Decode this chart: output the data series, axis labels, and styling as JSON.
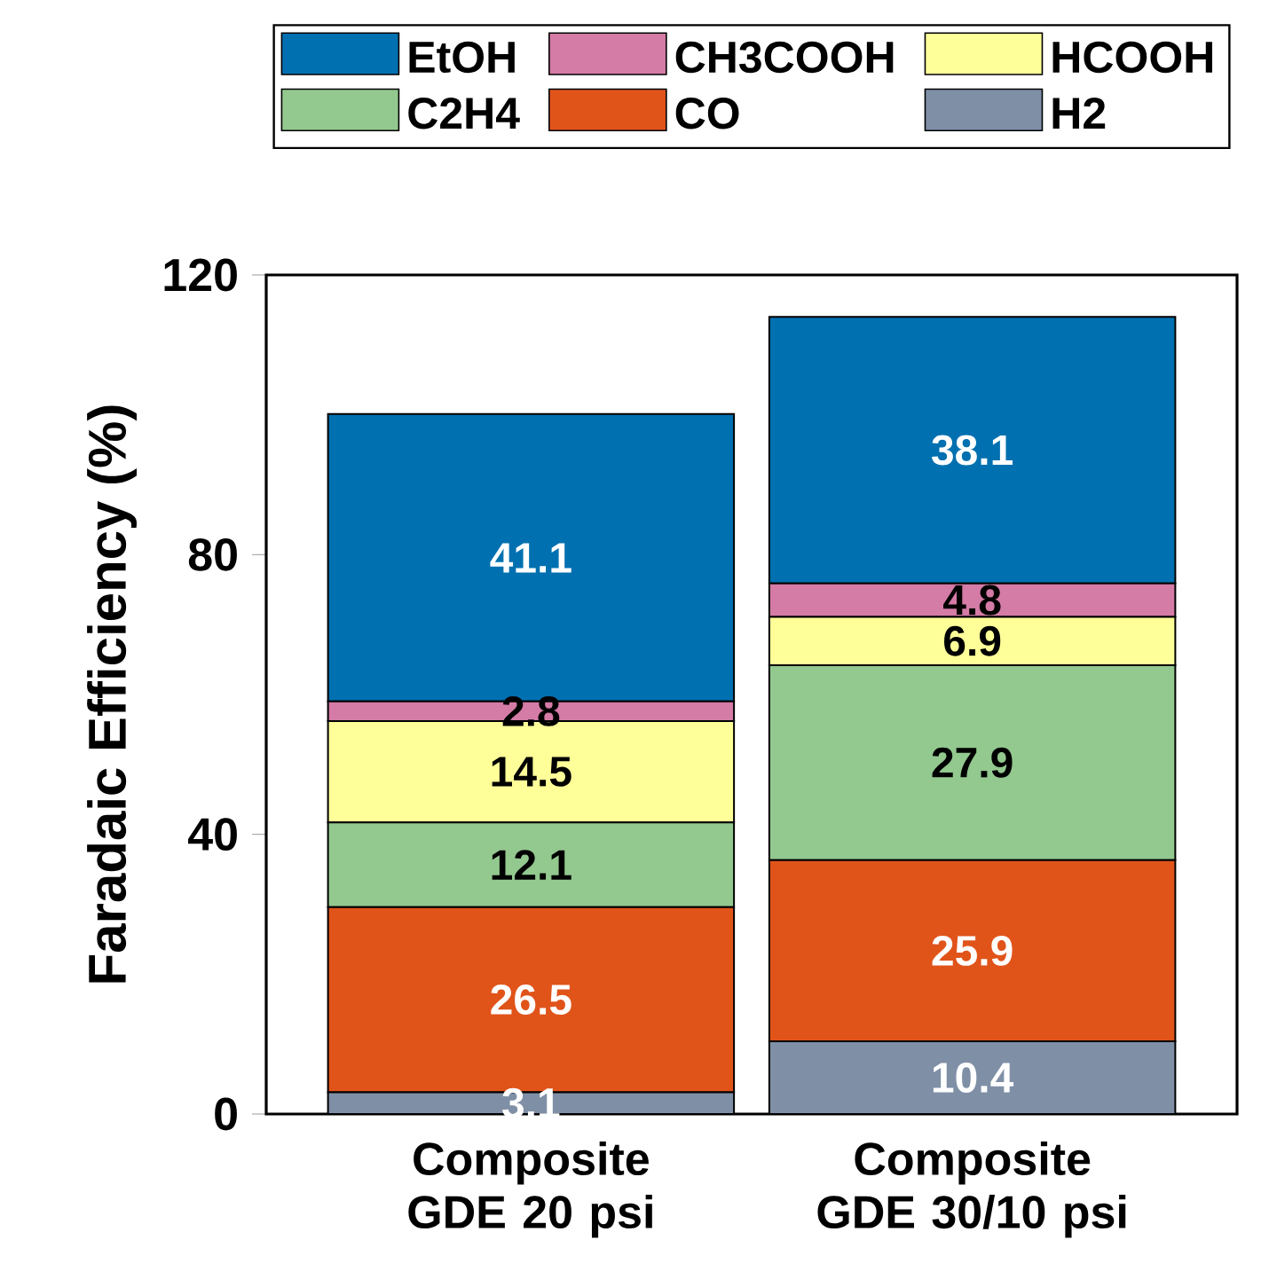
{
  "chart_data": {
    "type": "bar",
    "stacked": true,
    "ylabel": "Faradaic Efficiency (%)",
    "categories": [
      "Composite GDE 20 psi",
      "Composite GDE 30/10 psi"
    ],
    "series": [
      {
        "name": "H2",
        "color": "#7f8fa6",
        "values": [
          3.1,
          10.4
        ]
      },
      {
        "name": "CO",
        "color": "#e0541a",
        "values": [
          26.5,
          25.9
        ]
      },
      {
        "name": "C2H4",
        "color": "#93c88f",
        "values": [
          12.1,
          27.9
        ]
      },
      {
        "name": "HCOOH",
        "color": "#ffff99",
        "values": [
          14.5,
          6.9
        ]
      },
      {
        "name": "CH3COOH",
        "color": "#d47ba6",
        "values": [
          2.8,
          4.8
        ]
      },
      {
        "name": "EtOH",
        "color": "#0070b0",
        "values": [
          41.1,
          38.1
        ]
      }
    ],
    "ylim": [
      0,
      120
    ],
    "yticks": [
      0,
      40,
      80,
      120
    ],
    "data_labels": true,
    "legend": "top",
    "grid": false
  }
}
